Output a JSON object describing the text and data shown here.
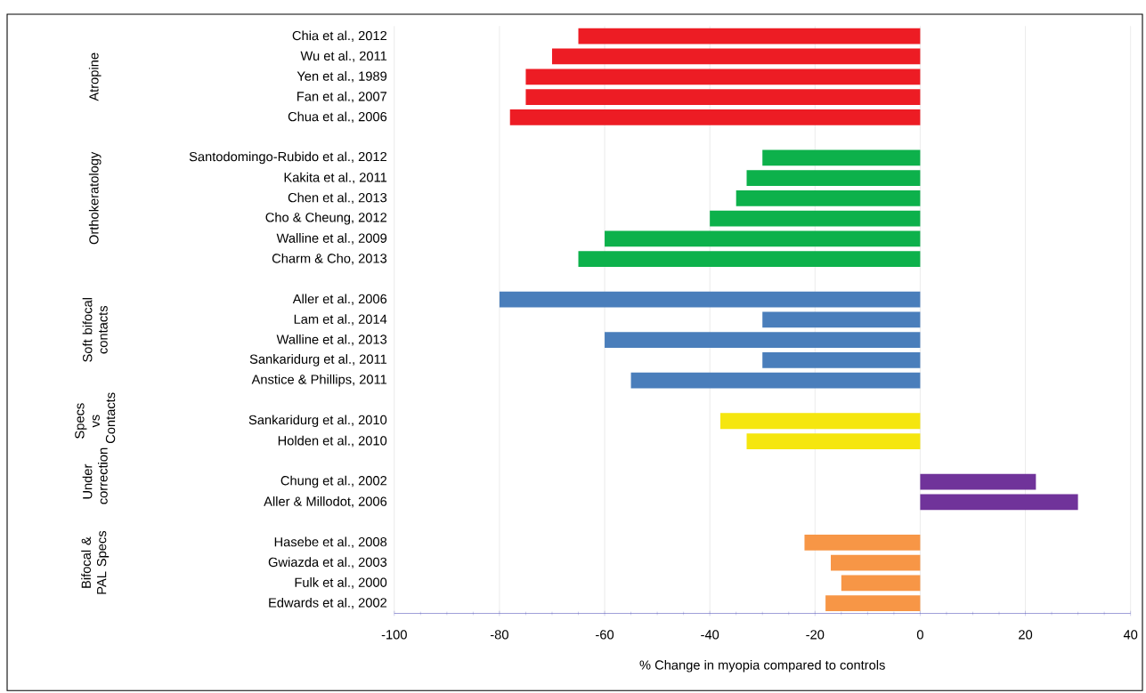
{
  "chart_data": {
    "type": "bar",
    "orientation": "horizontal",
    "xlabel": "% Change in myopia compared to controls",
    "categories": [
      "Chia et al., 2012",
      "Wu et al., 2011",
      "Yen et al., 1989",
      "Fan et al., 2007",
      "Chua et al., 2006",
      null,
      "Santodomingo-Rubido et al., 2012",
      "Kakita et al., 2011",
      "Chen et al., 2013",
      "Cho & Cheung, 2012",
      "Walline et al., 2009",
      "Charm & Cho, 2013",
      null,
      "Aller et al., 2006",
      "Lam et al., 2014",
      "Walline et al., 2013",
      "Sankaridurg et al., 2011",
      "Anstice & Phillips, 2011",
      null,
      "Sankaridurg et al., 2010",
      "Holden et al., 2010",
      null,
      "Chung et al., 2002",
      "Aller & Millodot, 2006",
      null,
      "Hasebe et al., 2008",
      "Gwiazda et al., 2003",
      "Fulk et al., 2000",
      "Edwards et al., 2002"
    ],
    "values": [
      -65,
      -70,
      -75,
      -75,
      -78,
      null,
      -30,
      -33,
      -35,
      -40,
      -60,
      -65,
      null,
      -80,
      -30,
      -60,
      -30,
      -55,
      null,
      -38,
      -33,
      null,
      22,
      30,
      null,
      -22,
      -17,
      -15,
      -18
    ],
    "colors": [
      "#ed1c24",
      "#ed1c24",
      "#ed1c24",
      "#ed1c24",
      "#ed1c24",
      null,
      "#0db14b",
      "#0db14b",
      "#0db14b",
      "#0db14b",
      "#0db14b",
      "#0db14b",
      null,
      "#4a7ebb",
      "#4a7ebb",
      "#4a7ebb",
      "#4a7ebb",
      "#4a7ebb",
      null,
      "#f5e60f",
      "#f5e60f",
      null,
      "#70339a",
      "#70339a",
      null,
      "#f79646",
      "#f79646",
      "#f79646",
      "#f79646"
    ],
    "annotations": [
      "Atropine",
      "Orthokeratology",
      "Soft bifocal contacts",
      "Specs vs Contacts",
      "Under correction",
      "Bifocal & PAL Specs"
    ],
    "xlim": [
      -100,
      40
    ],
    "xticks": [
      -100,
      -80,
      -60,
      -40,
      -20,
      0,
      20,
      40
    ],
    "grid": "x"
  }
}
